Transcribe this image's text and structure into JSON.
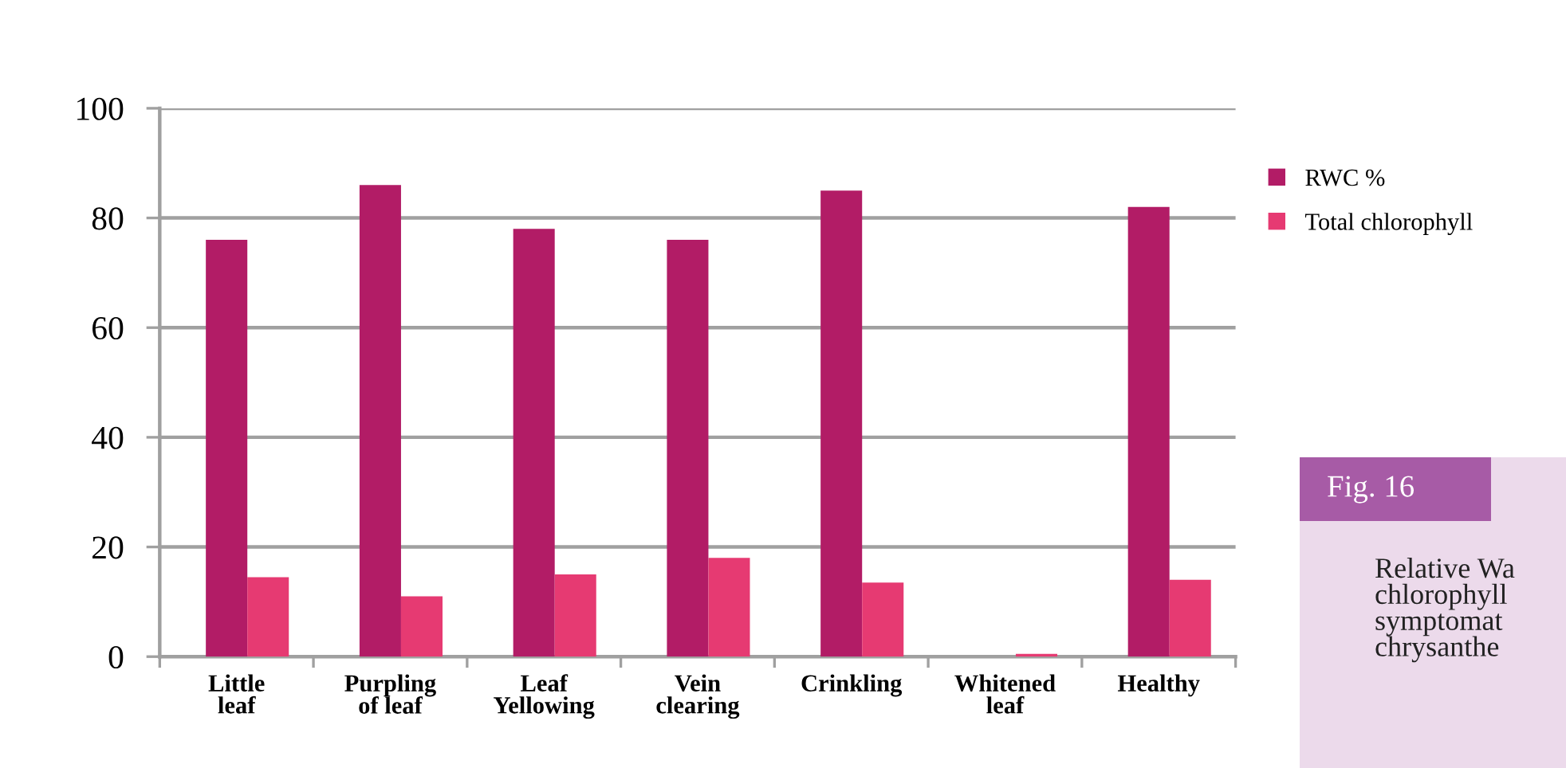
{
  "chart_data": {
    "type": "bar",
    "categories": [
      "Little\nleaf",
      "Purpling\nof leaf",
      "Leaf\nYellowing",
      "Vein\nclearing",
      "Crinkling",
      "Whitened\nleaf",
      "Healthy"
    ],
    "series": [
      {
        "name": "RWC %",
        "color": "#b21c66",
        "values": [
          76,
          86,
          78,
          76,
          85,
          null,
          82
        ]
      },
      {
        "name": "Total chlorophyll",
        "color": "#e63a72",
        "values": [
          14.5,
          11,
          15,
          18,
          13.5,
          0.5,
          14
        ]
      }
    ],
    "ylim": [
      0,
      100
    ],
    "yticks": [
      0,
      20,
      40,
      60,
      80,
      100
    ],
    "grid": "y",
    "legend": "right",
    "annotations": [
      "Fig. 16",
      "Relative Wa\nchlorophyll\nsymptomat\nchrysanthe"
    ]
  }
}
